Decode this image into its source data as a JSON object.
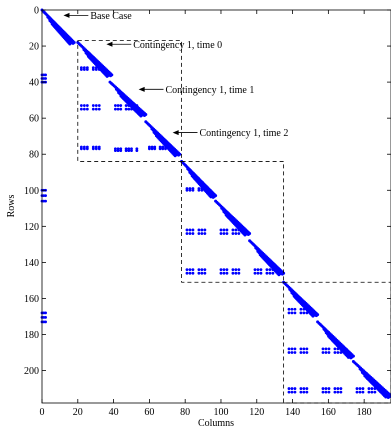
{
  "chart_data": {
    "type": "scatter",
    "title": "",
    "xlabel": "Columns",
    "ylabel": "Rows",
    "xlim": [
      0,
      195
    ],
    "ylim": [
      218,
      0
    ],
    "x_ticks": [
      0,
      20,
      40,
      60,
      80,
      100,
      120,
      140,
      160,
      180
    ],
    "y_ticks": [
      0,
      20,
      40,
      60,
      80,
      100,
      120,
      140,
      160,
      180,
      200
    ],
    "marker_color": "#0000ff",
    "annotations": [
      {
        "text": "Base Case",
        "target": [
          12,
          3
        ],
        "label_at": [
          27,
          3
        ]
      },
      {
        "text": "Contingency 1, time 0",
        "target": [
          36,
          19
        ],
        "label_at": [
          51,
          19
        ]
      },
      {
        "text": "Contingency 1, time 1",
        "target": [
          54,
          44
        ],
        "label_at": [
          69,
          44
        ]
      },
      {
        "text": "Contingency 1, time 2",
        "target": [
          73,
          68
        ],
        "label_at": [
          88,
          68
        ]
      }
    ],
    "dashed_boxes": [
      {
        "x": [
          20,
          78
        ],
        "y": [
          17,
          84
        ]
      },
      {
        "x": [
          78,
          135
        ],
        "y": [
          84,
          151
        ]
      },
      {
        "x": [
          135,
          195
        ],
        "y": [
          151,
          218
        ]
      }
    ],
    "bands": [
      {
        "x": [
          0,
          18
        ],
        "y": [
          0,
          18
        ]
      },
      {
        "x": [
          20,
          39
        ],
        "y": [
          18,
          36
        ]
      },
      {
        "x": [
          38,
          58
        ],
        "y": [
          40,
          58
        ]
      },
      {
        "x": [
          58,
          77
        ],
        "y": [
          62,
          80
        ]
      },
      {
        "x": [
          78,
          97
        ],
        "y": [
          84,
          103
        ]
      },
      {
        "x": [
          97,
          116
        ],
        "y": [
          106,
          124
        ]
      },
      {
        "x": [
          116,
          135
        ],
        "y": [
          128,
          146
        ]
      },
      {
        "x": [
          135,
          154
        ],
        "y": [
          151,
          169
        ]
      },
      {
        "x": [
          154,
          174
        ],
        "y": [
          173,
          192
        ]
      },
      {
        "x": [
          174,
          195
        ],
        "y": [
          195,
          214
        ]
      }
    ],
    "clusters": [
      {
        "x": [
          0,
          2
        ],
        "y": [
          36,
          40
        ]
      },
      {
        "x": [
          0,
          2
        ],
        "y": [
          100,
          106
        ]
      },
      {
        "x": [
          0,
          2
        ],
        "y": [
          168,
          173
        ]
      },
      {
        "x": [
          22,
          32
        ],
        "y": [
          32,
          33
        ]
      },
      {
        "x": [
          22,
          32
        ],
        "y": [
          53,
          55
        ]
      },
      {
        "x": [
          22,
          32
        ],
        "y": [
          76,
          77
        ]
      },
      {
        "x": [
          41,
          53
        ],
        "y": [
          53,
          55
        ]
      },
      {
        "x": [
          41,
          53
        ],
        "y": [
          77,
          78
        ]
      },
      {
        "x": [
          60,
          72
        ],
        "y": [
          76,
          77
        ]
      },
      {
        "x": [
          81,
          91
        ],
        "y": [
          99,
          100
        ]
      },
      {
        "x": [
          81,
          91
        ],
        "y": [
          122,
          124
        ]
      },
      {
        "x": [
          81,
          91
        ],
        "y": [
          144,
          146
        ]
      },
      {
        "x": [
          100,
          110
        ],
        "y": [
          122,
          124
        ]
      },
      {
        "x": [
          100,
          110
        ],
        "y": [
          144,
          146
        ]
      },
      {
        "x": [
          119,
          129
        ],
        "y": [
          144,
          146
        ]
      },
      {
        "x": [
          138,
          148
        ],
        "y": [
          166,
          168
        ]
      },
      {
        "x": [
          138,
          148
        ],
        "y": [
          188,
          190
        ]
      },
      {
        "x": [
          138,
          148
        ],
        "y": [
          210,
          212
        ]
      },
      {
        "x": [
          157,
          167
        ],
        "y": [
          188,
          190
        ]
      },
      {
        "x": [
          157,
          167
        ],
        "y": [
          210,
          212
        ]
      },
      {
        "x": [
          176,
          186
        ],
        "y": [
          210,
          212
        ]
      }
    ]
  }
}
